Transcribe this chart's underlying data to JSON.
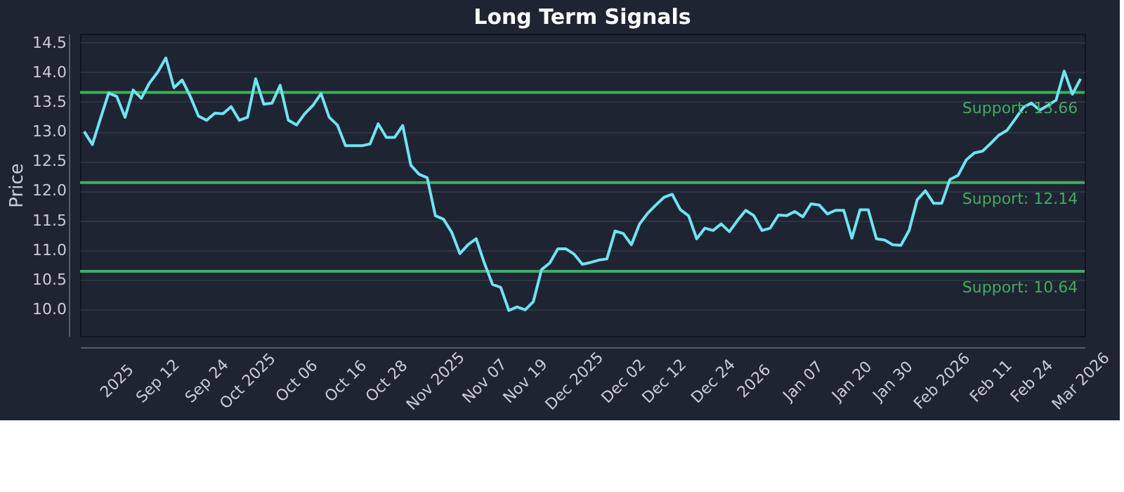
{
  "chart_data": {
    "type": "line",
    "title": "Long Term Signals",
    "ylabel": "Price",
    "categories": [
      null,
      null,
      null,
      null,
      "2025",
      null,
      null,
      null,
      null,
      "Sep 12",
      null,
      null,
      null,
      null,
      null,
      "Sep 24",
      null,
      null,
      null,
      null,
      "Oct 2025",
      null,
      null,
      null,
      null,
      null,
      "Oct 06",
      null,
      null,
      null,
      null,
      null,
      "Oct 16",
      null,
      null,
      null,
      null,
      "Oct 28",
      null,
      null,
      null,
      null,
      null,
      "Nov 2025",
      null,
      null,
      null,
      null,
      null,
      "Nov 07",
      null,
      null,
      null,
      null,
      "Nov 19",
      null,
      null,
      null,
      null,
      null,
      "Dec 2025",
      null,
      null,
      null,
      null,
      null,
      "Dec 02",
      null,
      null,
      null,
      null,
      "Dec 12",
      null,
      null,
      null,
      null,
      null,
      "Dec 24",
      null,
      null,
      null,
      null,
      "2026",
      null,
      null,
      null,
      null,
      null,
      "Jan 07",
      null,
      null,
      null,
      null,
      null,
      "Jan 20",
      null,
      null,
      null,
      null,
      "Jan 30",
      null,
      null,
      null,
      null,
      null,
      "Feb 2026",
      null,
      null,
      null,
      null,
      null,
      "Feb 11",
      null,
      null,
      null,
      null,
      "Feb 24",
      null,
      null,
      null,
      null,
      null,
      "Mar 2026"
    ],
    "series": [
      {
        "color": "#6fe3f2",
        "values": [
          13.0,
          12.78,
          13.22,
          13.65,
          13.59,
          13.24,
          13.7,
          13.56,
          13.82,
          14.0,
          14.24,
          13.74,
          13.87,
          13.59,
          13.26,
          13.19,
          13.31,
          13.3,
          13.42,
          13.19,
          13.24,
          13.89,
          13.46,
          13.48,
          13.78,
          13.19,
          13.11,
          13.3,
          13.44,
          13.64,
          13.24,
          13.11,
          12.76,
          12.76,
          12.76,
          12.79,
          13.13,
          12.9,
          12.9,
          13.1,
          12.43,
          12.28,
          12.22,
          11.58,
          11.52,
          11.3,
          10.94,
          11.09,
          11.19,
          10.78,
          10.42,
          10.37,
          9.98,
          10.04,
          9.99,
          10.13,
          10.67,
          10.78,
          11.02,
          11.02,
          10.93,
          10.76,
          10.79,
          10.83,
          10.85,
          11.32,
          11.28,
          11.09,
          11.44,
          11.62,
          11.76,
          11.89,
          11.94,
          11.68,
          11.58,
          11.19,
          11.37,
          11.33,
          11.44,
          11.31,
          11.5,
          11.67,
          11.58,
          11.33,
          11.37,
          11.59,
          11.58,
          11.65,
          11.56,
          11.78,
          11.76,
          11.61,
          11.67,
          11.67,
          11.2,
          11.68,
          11.68,
          11.19,
          11.17,
          11.09,
          11.08,
          11.33,
          11.85,
          12.0,
          11.79,
          11.79,
          12.19,
          12.26,
          12.52,
          12.64,
          12.67,
          12.8,
          12.94,
          13.02,
          13.21,
          13.41,
          13.48,
          13.36,
          13.44,
          13.53,
          14.02,
          13.63,
          13.89
        ]
      }
    ],
    "ylim": [
      9.55,
      14.65
    ],
    "yticks": [
      {
        "value": 10,
        "label": "10.0"
      },
      10.5,
      {
        "value": 11,
        "label": "11.0"
      },
      11.5,
      {
        "value": 12,
        "label": "12.0"
      },
      12.5,
      {
        "value": 13,
        "label": "13.0"
      },
      13.5,
      {
        "value": 14,
        "label": "14.0"
      },
      14.5
    ],
    "ref_lines": [
      {
        "axis": "y",
        "value": 13.66,
        "label": "Support: 13.66",
        "color": "#3fae5c"
      },
      {
        "axis": "y",
        "value": 12.14,
        "label": "Support: 12.14",
        "color": "#3fae5c"
      },
      {
        "axis": "y",
        "value": 10.64,
        "label": "Support: 10.64",
        "color": "#3fae5c"
      }
    ],
    "grid": "y",
    "marker": "none",
    "line_style": "solid"
  }
}
